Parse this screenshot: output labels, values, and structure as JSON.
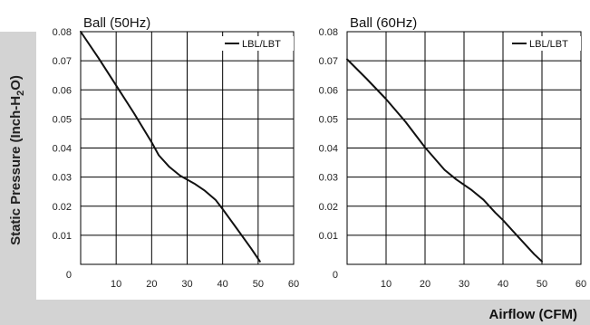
{
  "ylabel_text": "Static Pressure (Inch-H",
  "ylabel_sub": "2",
  "ylabel_tail": "O)",
  "xlabel": "Airflow (CFM)",
  "colors": {
    "band": "#d3d3d3",
    "curve": "#111111"
  },
  "chart_data": [
    {
      "type": "line",
      "title": "Ball (50Hz)",
      "xlabel": "Airflow (CFM)",
      "ylabel": "Static Pressure (Inch-H2O)",
      "xlim": [
        0,
        60
      ],
      "ylim": [
        0,
        0.08
      ],
      "xticks": [
        10,
        20,
        30,
        40,
        50,
        60
      ],
      "yticks": [
        0.01,
        0.02,
        0.03,
        0.04,
        0.05,
        0.06,
        0.07,
        0.08
      ],
      "y_origin_label": "0",
      "grid": true,
      "legend_position": "top-right",
      "series": [
        {
          "name": "LBL/LBT",
          "x": [
            0,
            5,
            10,
            15,
            20,
            22,
            25,
            28,
            32,
            35,
            38,
            40,
            44,
            48,
            50.5
          ],
          "y": [
            0.08,
            0.071,
            0.0615,
            0.052,
            0.042,
            0.0375,
            0.0335,
            0.0305,
            0.0278,
            0.0253,
            0.0222,
            0.019,
            0.0123,
            0.0055,
            0.001
          ]
        }
      ]
    },
    {
      "type": "line",
      "title": "Ball (60Hz)",
      "xlabel": "Airflow (CFM)",
      "ylabel": "Static Pressure (Inch-H2O)",
      "xlim": [
        0,
        60
      ],
      "ylim": [
        0,
        0.08
      ],
      "xticks": [
        10,
        20,
        30,
        40,
        50,
        60
      ],
      "yticks": [
        0.01,
        0.02,
        0.03,
        0.04,
        0.05,
        0.06,
        0.07,
        0.08
      ],
      "y_origin_label": "0",
      "grid": true,
      "legend_position": "top-right",
      "series": [
        {
          "name": "LBL/LBT",
          "x": [
            0,
            5,
            10,
            15,
            20,
            25,
            28,
            32,
            35,
            38,
            40,
            44,
            48,
            50
          ],
          "y": [
            0.0705,
            0.0638,
            0.0568,
            0.049,
            0.0402,
            0.0325,
            0.0292,
            0.0255,
            0.0222,
            0.0178,
            0.0152,
            0.0093,
            0.0035,
            0.001
          ]
        }
      ]
    }
  ]
}
